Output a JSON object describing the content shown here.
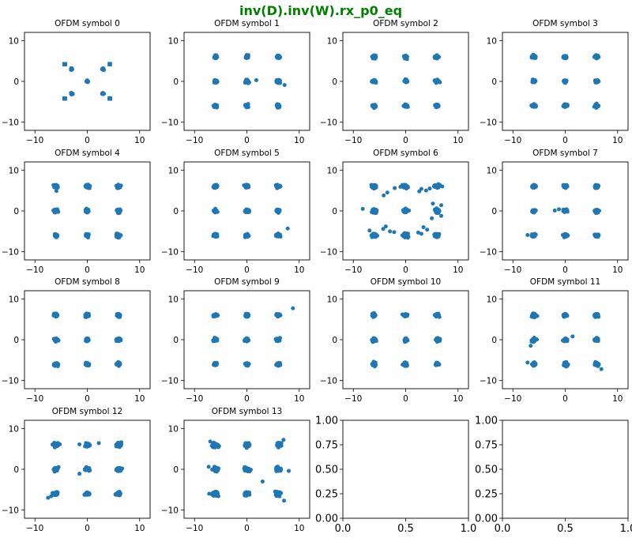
{
  "figure": {
    "suptitle": "inv(D).inv(W).rx_p0_eq",
    "suptitle_color": "#008000",
    "marker_color": "#1f77b4"
  },
  "chart_data": [
    {
      "type": "scatter",
      "title": "OFDM symbol 0",
      "xlim": [
        -12,
        12
      ],
      "ylim": [
        -12,
        12
      ],
      "xticks": [
        -10,
        0,
        10
      ],
      "yticks": [
        -10,
        0,
        10
      ],
      "constellation": "QPSK+center",
      "centers": [
        [
          -4.3,
          4.2
        ],
        [
          4.3,
          4.2
        ],
        [
          -4.3,
          -4.2
        ],
        [
          4.3,
          -4.2
        ],
        [
          -3.0,
          3.0
        ],
        [
          3.0,
          3.0
        ],
        [
          -3.0,
          -3.0
        ],
        [
          3.0,
          -3.0
        ],
        [
          0,
          0
        ]
      ],
      "spread": 0.25,
      "outliers": []
    },
    {
      "type": "scatter",
      "title": "OFDM symbol 1",
      "xlim": [
        -12,
        12
      ],
      "ylim": [
        -12,
        12
      ],
      "xticks": [
        -10,
        0,
        10
      ],
      "yticks": [
        -10,
        0,
        10
      ],
      "constellation": "3x3 grid",
      "centers": [
        [
          -6,
          6
        ],
        [
          0,
          6
        ],
        [
          6,
          6
        ],
        [
          -6,
          0
        ],
        [
          0,
          0
        ],
        [
          6,
          0
        ],
        [
          -6,
          -6
        ],
        [
          0,
          -6
        ],
        [
          6,
          -6
        ]
      ],
      "spread": 0.45,
      "outliers": [
        [
          1.8,
          0.3
        ],
        [
          7.2,
          -0.9
        ]
      ]
    },
    {
      "type": "scatter",
      "title": "OFDM symbol 2",
      "xlim": [
        -12,
        12
      ],
      "ylim": [
        -12,
        12
      ],
      "xticks": [
        -10,
        0,
        10
      ],
      "yticks": [
        -10,
        0,
        10
      ],
      "constellation": "3x3 grid",
      "centers": [
        [
          -6,
          6
        ],
        [
          0,
          6
        ],
        [
          6,
          6
        ],
        [
          -6,
          0
        ],
        [
          0,
          0
        ],
        [
          6,
          0
        ],
        [
          -6,
          -6
        ],
        [
          0,
          -6
        ],
        [
          6,
          -6
        ]
      ],
      "spread": 0.45,
      "outliers": []
    },
    {
      "type": "scatter",
      "title": "OFDM symbol 3",
      "xlim": [
        -12,
        12
      ],
      "ylim": [
        -12,
        12
      ],
      "xticks": [
        -10,
        0,
        10
      ],
      "yticks": [
        -10,
        0,
        10
      ],
      "constellation": "3x3 grid",
      "centers": [
        [
          -6,
          6
        ],
        [
          0,
          6
        ],
        [
          6,
          6
        ],
        [
          -6,
          0
        ],
        [
          0,
          0
        ],
        [
          6,
          0
        ],
        [
          -6,
          -6
        ],
        [
          0,
          -6
        ],
        [
          6,
          -6
        ]
      ],
      "spread": 0.45,
      "outliers": []
    },
    {
      "type": "scatter",
      "title": "OFDM symbol 4",
      "xlim": [
        -12,
        12
      ],
      "ylim": [
        -12,
        12
      ],
      "xticks": [
        -10,
        0,
        10
      ],
      "yticks": [
        -10,
        0,
        10
      ],
      "constellation": "3x3 grid",
      "centers": [
        [
          -6,
          6
        ],
        [
          0,
          6
        ],
        [
          6,
          6
        ],
        [
          -6,
          0
        ],
        [
          0,
          0
        ],
        [
          6,
          0
        ],
        [
          -6,
          -6
        ],
        [
          0,
          -6
        ],
        [
          6,
          -6
        ]
      ],
      "spread": 0.5,
      "outliers": [
        [
          -5.9,
          4.9
        ]
      ]
    },
    {
      "type": "scatter",
      "title": "OFDM symbol 5",
      "xlim": [
        -12,
        12
      ],
      "ylim": [
        -12,
        12
      ],
      "xticks": [
        -10,
        0,
        10
      ],
      "yticks": [
        -10,
        0,
        10
      ],
      "constellation": "3x3 grid",
      "centers": [
        [
          -6,
          6
        ],
        [
          0,
          6
        ],
        [
          6,
          6
        ],
        [
          -6,
          0
        ],
        [
          0,
          0
        ],
        [
          6,
          0
        ],
        [
          -6,
          -6
        ],
        [
          0,
          -6
        ],
        [
          6,
          -6
        ]
      ],
      "spread": 0.5,
      "outliers": [
        [
          7.8,
          -4.3
        ]
      ]
    },
    {
      "type": "scatter",
      "title": "OFDM symbol 6",
      "xlim": [
        -12,
        12
      ],
      "ylim": [
        -12,
        12
      ],
      "xticks": [
        -10,
        0,
        10
      ],
      "yticks": [
        -10,
        0,
        10
      ],
      "constellation": "3x3 grid",
      "centers": [
        [
          -6,
          6
        ],
        [
          0,
          6
        ],
        [
          6,
          6
        ],
        [
          -6,
          0
        ],
        [
          0,
          0
        ],
        [
          6,
          0
        ],
        [
          -6,
          -6
        ],
        [
          0,
          -6
        ],
        [
          6,
          -6
        ]
      ],
      "spread": 0.6,
      "outliers": [
        [
          -8.2,
          0.5
        ],
        [
          -3.5,
          4.5
        ],
        [
          -4.2,
          3.8
        ],
        [
          -2.1,
          5.6
        ],
        [
          -1.0,
          5.9
        ],
        [
          3.0,
          5.4
        ],
        [
          3.9,
          5.0
        ],
        [
          4.6,
          5.5
        ],
        [
          2.6,
          4.8
        ],
        [
          -3.8,
          -3.8
        ],
        [
          -4.3,
          -4.4
        ],
        [
          -3.0,
          -5.0
        ],
        [
          -2.2,
          -5.2
        ],
        [
          3.4,
          -4.0
        ],
        [
          4.1,
          -4.6
        ],
        [
          3.0,
          -5.6
        ],
        [
          2.4,
          -5.3
        ],
        [
          5.2,
          1.8
        ],
        [
          5.0,
          -1.8
        ],
        [
          6.8,
          1.4
        ],
        [
          6.8,
          -1.2
        ],
        [
          7.0,
          6.0
        ],
        [
          -6.9,
          -4.8
        ]
      ]
    },
    {
      "type": "scatter",
      "title": "OFDM symbol 7",
      "xlim": [
        -12,
        12
      ],
      "ylim": [
        -12,
        12
      ],
      "xticks": [
        -10,
        0,
        10
      ],
      "yticks": [
        -10,
        0,
        10
      ],
      "constellation": "3x3 grid",
      "centers": [
        [
          -6,
          6
        ],
        [
          0,
          6
        ],
        [
          6,
          6
        ],
        [
          -6,
          0
        ],
        [
          0,
          0
        ],
        [
          6,
          0
        ],
        [
          -6,
          -6
        ],
        [
          0,
          -6
        ],
        [
          6,
          -6
        ]
      ],
      "spread": 0.5,
      "outliers": [
        [
          -7.2,
          -5.9
        ],
        [
          -2.0,
          0.1
        ],
        [
          -1.2,
          0.4
        ]
      ]
    },
    {
      "type": "scatter",
      "title": "OFDM symbol 8",
      "xlim": [
        -12,
        12
      ],
      "ylim": [
        -12,
        12
      ],
      "xticks": [
        -10,
        0,
        10
      ],
      "yticks": [
        -10,
        0,
        10
      ],
      "constellation": "3x3 grid",
      "centers": [
        [
          -6,
          6
        ],
        [
          0,
          6
        ],
        [
          6,
          6
        ],
        [
          -6,
          0
        ],
        [
          0,
          0
        ],
        [
          6,
          0
        ],
        [
          -6,
          -6
        ],
        [
          0,
          -6
        ],
        [
          6,
          -6
        ]
      ],
      "spread": 0.5,
      "outliers": []
    },
    {
      "type": "scatter",
      "title": "OFDM symbol 9",
      "xlim": [
        -12,
        12
      ],
      "ylim": [
        -12,
        12
      ],
      "xticks": [
        -10,
        0,
        10
      ],
      "yticks": [
        -10,
        0,
        10
      ],
      "constellation": "3x3 grid",
      "centers": [
        [
          -6,
          6
        ],
        [
          0,
          6
        ],
        [
          6,
          6
        ],
        [
          -6,
          0
        ],
        [
          0,
          0
        ],
        [
          6,
          0
        ],
        [
          -6,
          -6
        ],
        [
          0,
          -6
        ],
        [
          6,
          -6
        ]
      ],
      "spread": 0.45,
      "outliers": [
        [
          8.8,
          7.7
        ]
      ]
    },
    {
      "type": "scatter",
      "title": "OFDM symbol 10",
      "xlim": [
        -12,
        12
      ],
      "ylim": [
        -12,
        12
      ],
      "xticks": [
        -10,
        0,
        10
      ],
      "yticks": [
        -10,
        0,
        10
      ],
      "constellation": "3x3 grid",
      "centers": [
        [
          -6,
          6
        ],
        [
          0,
          6
        ],
        [
          6,
          6
        ],
        [
          -6,
          0
        ],
        [
          0,
          0
        ],
        [
          6,
          0
        ],
        [
          -6,
          -6
        ],
        [
          0,
          -6
        ],
        [
          6,
          -6
        ]
      ],
      "spread": 0.5,
      "outliers": []
    },
    {
      "type": "scatter",
      "title": "OFDM symbol 11",
      "xlim": [
        -12,
        12
      ],
      "ylim": [
        -12,
        12
      ],
      "xticks": [
        -10,
        0,
        10
      ],
      "yticks": [
        -10,
        0,
        10
      ],
      "constellation": "3x3 grid",
      "centers": [
        [
          -6,
          6
        ],
        [
          0,
          6
        ],
        [
          6,
          6
        ],
        [
          -6,
          0
        ],
        [
          0,
          0
        ],
        [
          6,
          0
        ],
        [
          -6,
          -6
        ],
        [
          0,
          -6
        ],
        [
          6,
          -6
        ]
      ],
      "spread": 0.55,
      "outliers": [
        [
          -6.6,
          -1.5
        ],
        [
          1.4,
          0.8
        ],
        [
          -7.2,
          -5.6
        ],
        [
          6.9,
          -7.2
        ]
      ]
    },
    {
      "type": "scatter",
      "title": "OFDM symbol 12",
      "xlim": [
        -12,
        12
      ],
      "ylim": [
        -12,
        12
      ],
      "xticks": [
        -10,
        0,
        10
      ],
      "yticks": [
        -10,
        0,
        10
      ],
      "constellation": "3x3 grid",
      "centers": [
        [
          -6,
          6
        ],
        [
          0,
          6
        ],
        [
          6,
          6
        ],
        [
          -6,
          0
        ],
        [
          0,
          0
        ],
        [
          6,
          0
        ],
        [
          -6,
          -6
        ],
        [
          0,
          -6
        ],
        [
          6,
          -6
        ]
      ],
      "spread": 0.6,
      "outliers": [
        [
          2.2,
          6.4
        ],
        [
          -1.5,
          -1.1
        ],
        [
          -7.5,
          -7.0
        ],
        [
          -6.9,
          -6.6
        ],
        [
          -1.5,
          6.1
        ]
      ]
    },
    {
      "type": "scatter",
      "title": "OFDM symbol 13",
      "xlim": [
        -12,
        12
      ],
      "ylim": [
        -12,
        12
      ],
      "xticks": [
        -10,
        0,
        10
      ],
      "yticks": [
        -10,
        0,
        10
      ],
      "constellation": "3x3 grid",
      "centers": [
        [
          -6,
          6
        ],
        [
          0,
          6
        ],
        [
          6,
          6
        ],
        [
          -6,
          0
        ],
        [
          0,
          0
        ],
        [
          6,
          0
        ],
        [
          -6,
          -6
        ],
        [
          0,
          -6
        ],
        [
          6,
          -6
        ]
      ],
      "spread": 0.7,
      "outliers": [
        [
          3.0,
          -3.0
        ],
        [
          -7.0,
          6.8
        ],
        [
          7.0,
          7.2
        ],
        [
          -7.2,
          -6.0
        ],
        [
          7.1,
          -7.7
        ],
        [
          8.0,
          -0.4
        ],
        [
          -7.3,
          0.6
        ]
      ]
    },
    {
      "type": "empty",
      "title": "",
      "xlim": [
        0,
        1
      ],
      "ylim": [
        0,
        1
      ],
      "xticks": [
        "0.0",
        "0.5",
        "1.0"
      ],
      "yticks": [
        "0.00",
        "0.25",
        "0.50",
        "0.75",
        "1.00"
      ]
    },
    {
      "type": "empty",
      "title": "",
      "xlim": [
        0,
        1
      ],
      "ylim": [
        0,
        1
      ],
      "xticks": [
        "0.0",
        "0.5",
        "1.0"
      ],
      "yticks": [
        "0.00",
        "0.25",
        "0.50",
        "0.75",
        "1.00"
      ]
    }
  ]
}
